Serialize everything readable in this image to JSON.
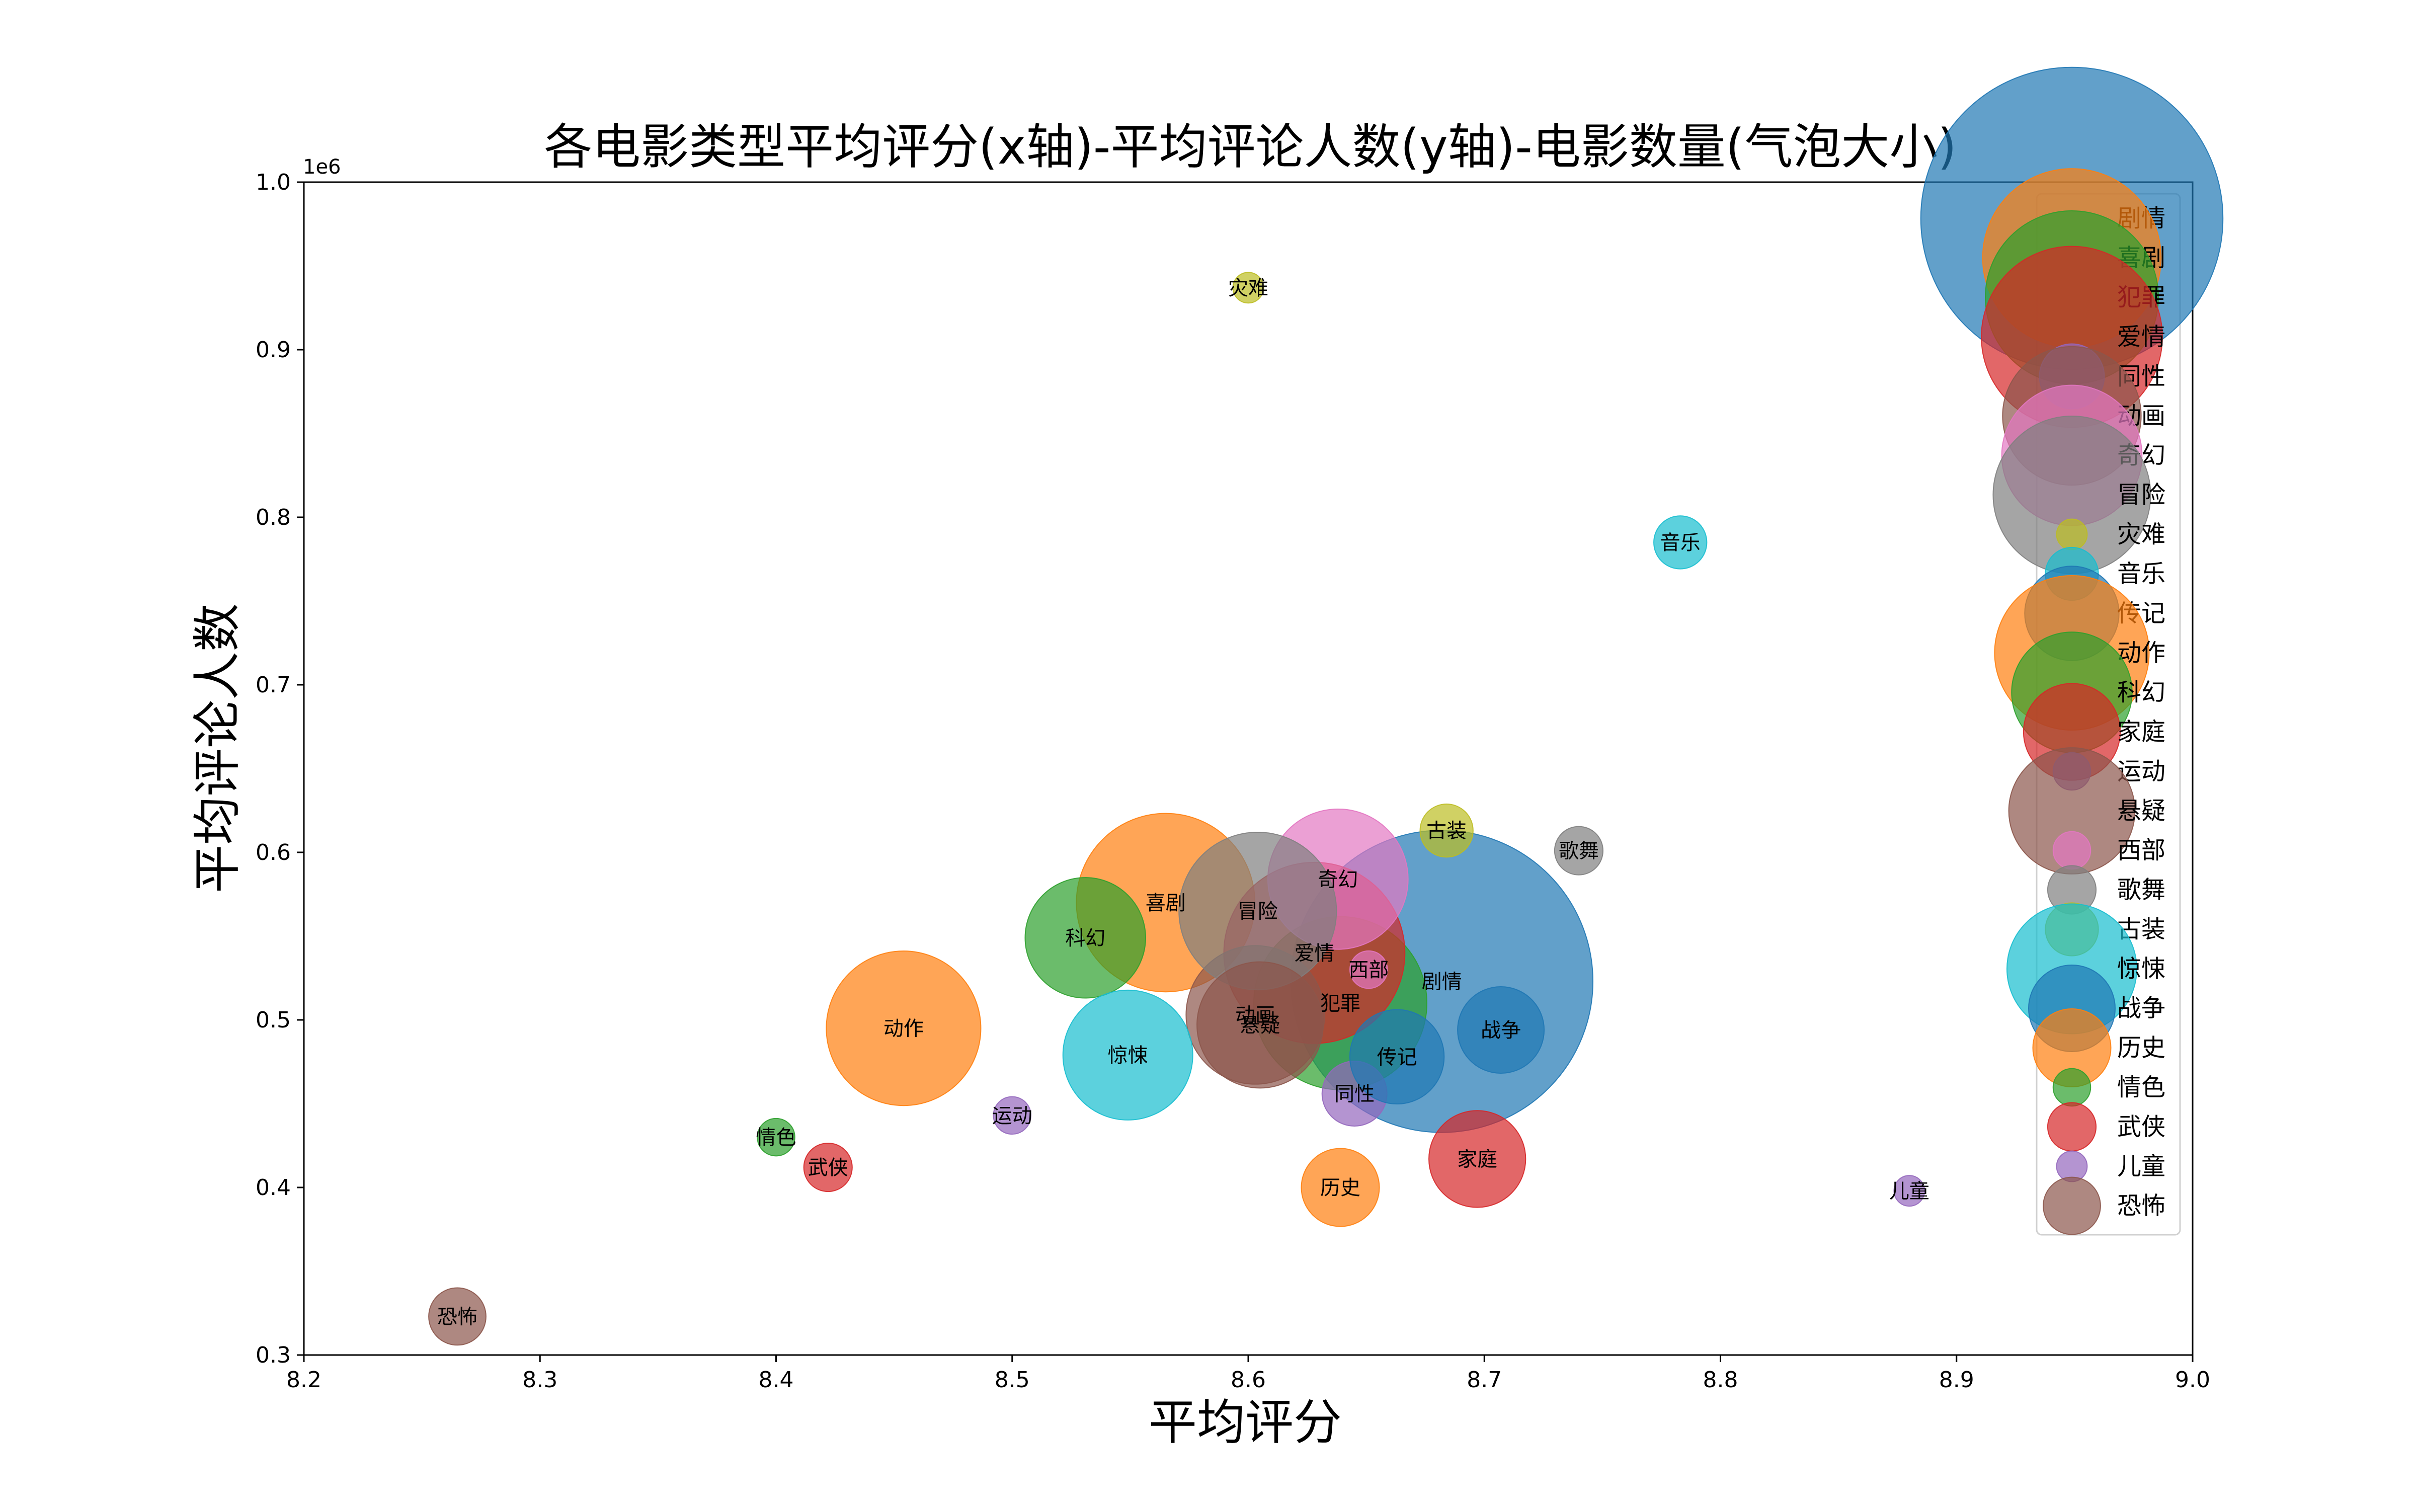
{
  "chart_data": {
    "type": "scatter",
    "title": "各电影类型平均评分(x轴)-平均评论人数(y轴)-电影数量(气泡大小)",
    "xlabel": "平均评分",
    "ylabel": "平均评论人数",
    "y_offset_text": "1e6",
    "xlim": [
      8.2,
      9.0
    ],
    "ylim": [
      300000,
      1000000
    ],
    "x_ticks": [
      8.2,
      8.3,
      8.4,
      8.5,
      8.6,
      8.7,
      8.8,
      8.9,
      9.0
    ],
    "x_tick_labels": [
      "8.2",
      "8.3",
      "8.4",
      "8.5",
      "8.6",
      "8.7",
      "8.8",
      "8.9",
      "9.0"
    ],
    "y_ticks": [
      300000,
      400000,
      500000,
      600000,
      700000,
      800000,
      900000,
      1000000
    ],
    "y_tick_labels": [
      "0.3",
      "0.4",
      "0.5",
      "0.6",
      "0.7",
      "0.8",
      "0.9",
      "1.0"
    ],
    "legend_position": "upper-right",
    "size_encoding": "电影数量",
    "series": [
      {
        "name": "剧情",
        "x": 8.682,
        "y": 523000,
        "size": 195,
        "color": "#1f77b4"
      },
      {
        "name": "喜剧",
        "x": 8.565,
        "y": 570000,
        "size": 68,
        "color": "#ff7f0e"
      },
      {
        "name": "犯罪",
        "x": 8.639,
        "y": 510000,
        "size": 64,
        "color": "#2ca02c"
      },
      {
        "name": "爱情",
        "x": 8.628,
        "y": 540000,
        "size": 70,
        "color": "#d62728"
      },
      {
        "name": "同性",
        "x": 8.645,
        "y": 456000,
        "size": 9,
        "color": "#9467bd"
      },
      {
        "name": "动画",
        "x": 8.603,
        "y": 503000,
        "size": 41,
        "color": "#8c564b"
      },
      {
        "name": "奇幻",
        "x": 8.638,
        "y": 584000,
        "size": 42,
        "color": "#e377c2"
      },
      {
        "name": "冒险",
        "x": 8.604,
        "y": 565000,
        "size": 53,
        "color": "#7f7f7f"
      },
      {
        "name": "灾难",
        "x": 8.6,
        "y": 937000,
        "size": 2,
        "color": "#bcbd22"
      },
      {
        "name": "音乐",
        "x": 8.783,
        "y": 785000,
        "size": 6,
        "color": "#17becf"
      },
      {
        "name": "传记",
        "x": 8.663,
        "y": 478000,
        "size": 19,
        "color": "#1f77b4"
      },
      {
        "name": "动作",
        "x": 8.454,
        "y": 495000,
        "size": 51,
        "color": "#ff7f0e"
      },
      {
        "name": "科幻",
        "x": 8.531,
        "y": 549000,
        "size": 31,
        "color": "#2ca02c"
      },
      {
        "name": "家庭",
        "x": 8.697,
        "y": 417000,
        "size": 20,
        "color": "#d62728"
      },
      {
        "name": "运动",
        "x": 8.5,
        "y": 443000,
        "size": 3,
        "color": "#9467bd"
      },
      {
        "name": "悬疑",
        "x": 8.605,
        "y": 497000,
        "size": 34,
        "color": "#8c564b"
      },
      {
        "name": "西部",
        "x": 8.651,
        "y": 530000,
        "size": 3,
        "color": "#e377c2"
      },
      {
        "name": "歌舞",
        "x": 8.74,
        "y": 601000,
        "size": 5,
        "color": "#7f7f7f"
      },
      {
        "name": "古装",
        "x": 8.684,
        "y": 613000,
        "size": 6,
        "color": "#bcbd22"
      },
      {
        "name": "惊悚",
        "x": 8.549,
        "y": 479000,
        "size": 36,
        "color": "#17becf"
      },
      {
        "name": "战争",
        "x": 8.707,
        "y": 494000,
        "size": 16,
        "color": "#1f77b4"
      },
      {
        "name": "历史",
        "x": 8.639,
        "y": 400000,
        "size": 13,
        "color": "#ff7f0e"
      },
      {
        "name": "情色",
        "x": 8.4,
        "y": 430000,
        "size": 3,
        "color": "#2ca02c"
      },
      {
        "name": "武侠",
        "x": 8.422,
        "y": 412000,
        "size": 5,
        "color": "#d62728"
      },
      {
        "name": "儿童",
        "x": 8.88,
        "y": 398000,
        "size": 2,
        "color": "#9467bd"
      },
      {
        "name": "恐怖",
        "x": 8.265,
        "y": 323000,
        "size": 7,
        "color": "#8c564b"
      }
    ]
  }
}
